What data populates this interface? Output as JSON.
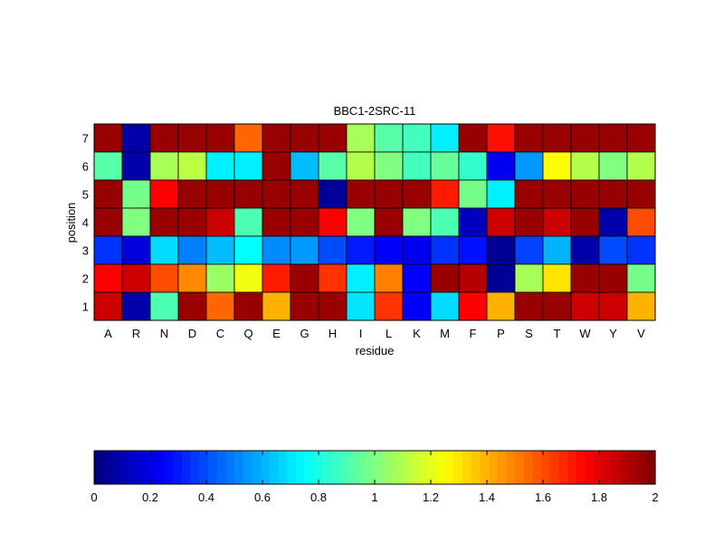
{
  "chart_data": {
    "type": "heatmap",
    "title": "BBC1-2SRC-11",
    "xlabel": "residue",
    "ylabel": "position",
    "x_categories": [
      "A",
      "R",
      "N",
      "D",
      "C",
      "Q",
      "E",
      "G",
      "H",
      "I",
      "L",
      "K",
      "M",
      "F",
      "P",
      "S",
      "T",
      "W",
      "Y",
      "V"
    ],
    "y_categories": [
      "7",
      "6",
      "5",
      "4",
      "3",
      "2",
      "1"
    ],
    "values": [
      [
        1.95,
        0.08,
        1.95,
        1.95,
        1.95,
        1.55,
        1.95,
        1.95,
        1.95,
        1.08,
        0.92,
        0.88,
        0.72,
        1.95,
        1.72,
        1.95,
        1.95,
        1.95,
        1.95,
        1.95
      ],
      [
        0.92,
        0.08,
        1.08,
        1.12,
        0.72,
        0.72,
        1.95,
        0.62,
        0.92,
        1.1,
        1.0,
        0.88,
        0.95,
        0.85,
        0.22,
        0.55,
        1.25,
        1.1,
        1.0,
        1.1
      ],
      [
        1.95,
        0.98,
        1.75,
        1.95,
        1.95,
        1.95,
        1.95,
        1.95,
        0.05,
        1.95,
        1.95,
        1.95,
        1.7,
        0.98,
        0.72,
        1.95,
        1.95,
        1.95,
        1.95,
        1.95
      ],
      [
        1.95,
        1.0,
        1.95,
        1.95,
        1.85,
        0.9,
        1.95,
        1.95,
        1.75,
        1.0,
        1.95,
        1.0,
        0.9,
        0.12,
        1.85,
        1.95,
        1.85,
        1.95,
        0.08,
        1.6
      ],
      [
        0.35,
        0.18,
        0.68,
        0.5,
        0.62,
        0.75,
        0.52,
        0.55,
        0.4,
        0.3,
        0.25,
        0.22,
        0.35,
        0.28,
        0.05,
        0.38,
        0.6,
        0.08,
        0.4,
        0.35
      ],
      [
        1.75,
        1.85,
        1.6,
        1.48,
        1.05,
        1.22,
        1.7,
        1.95,
        1.65,
        0.72,
        1.5,
        0.25,
        1.95,
        1.9,
        0.05,
        1.08,
        1.3,
        1.95,
        1.95,
        0.98
      ],
      [
        1.85,
        0.08,
        0.9,
        1.95,
        1.55,
        1.95,
        1.4,
        1.95,
        1.95,
        0.7,
        1.65,
        0.25,
        0.68,
        1.75,
        1.4,
        1.95,
        1.95,
        1.85,
        1.85,
        1.4
      ]
    ],
    "colorbar": {
      "min": 0,
      "max": 2,
      "ticks": [
        "0",
        "0.2",
        "0.4",
        "0.6",
        "0.8",
        "1",
        "1.2",
        "1.4",
        "1.6",
        "1.8",
        "2"
      ],
      "colormap": "jet",
      "orientation": "horizontal"
    }
  }
}
